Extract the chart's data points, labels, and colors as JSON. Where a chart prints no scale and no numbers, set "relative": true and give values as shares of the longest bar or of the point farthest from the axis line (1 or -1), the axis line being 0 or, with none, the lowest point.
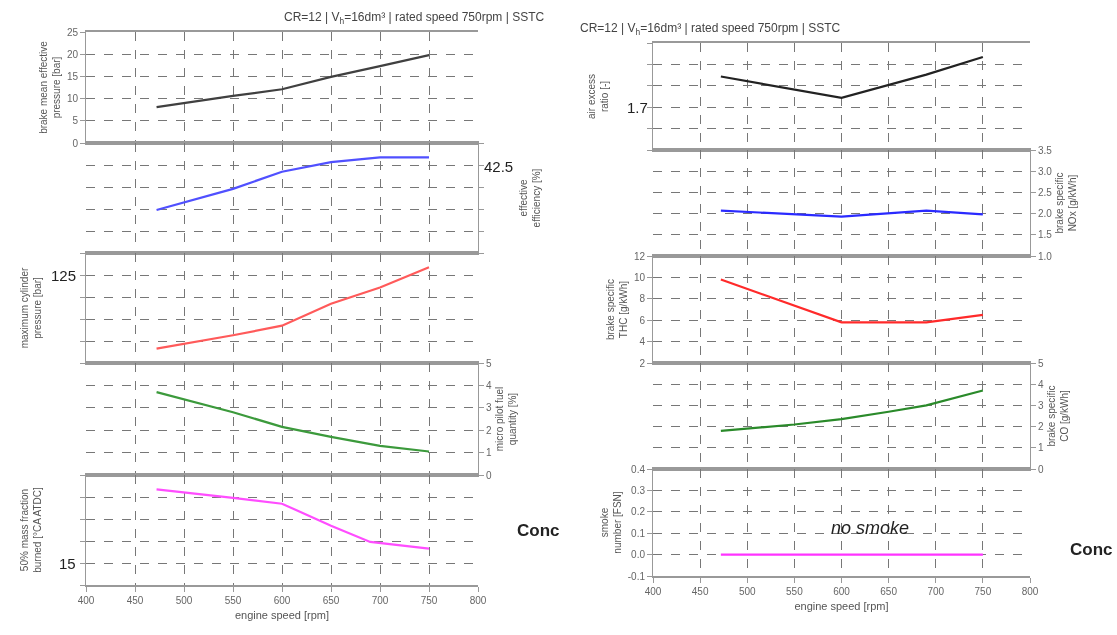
{
  "chart_data": [
    {
      "type": "line",
      "title": "CR=12 | V$_{h}$=16dm³ | rated speed 750rpm | SSTC",
      "ylabel": "brake mean effective pressure [bar]",
      "x": [
        472,
        550,
        600,
        650,
        700,
        750
      ],
      "xlim": [
        400,
        800
      ],
      "xticks": [
        400,
        450,
        500,
        550,
        600,
        650,
        700,
        750,
        800
      ],
      "ylim": [
        0,
        25
      ],
      "yticks": [
        0,
        5,
        10,
        15,
        20,
        25
      ],
      "grid": true,
      "tick_labels": "y",
      "series": [
        {
          "color": "#404040",
          "values": [
            8.1,
            10.6,
            12.1,
            14.9,
            17.3,
            19.8
          ]
        }
      ]
    },
    {
      "type": "line",
      "relative": true,
      "y2label": "effective efficiency [%]",
      "x": [
        472,
        550,
        600,
        650,
        700,
        750
      ],
      "xlim": [
        400,
        800
      ],
      "xticks": [
        400,
        450,
        500,
        550,
        600,
        650,
        700,
        750,
        800
      ],
      "grid": true,
      "tick_labels": false,
      "annotations": [
        "42.5"
      ],
      "series": [
        {
          "color": "#5050ff",
          "axis": "y2",
          "values": [
            0.45,
            0.67,
            0.85,
            0.95,
            1,
            1
          ]
        }
      ]
    },
    {
      "type": "line",
      "relative": true,
      "ylabel": "maximum cylinder pressure [bar]",
      "x": [
        472,
        550,
        600,
        650,
        700,
        750
      ],
      "xlim": [
        400,
        800
      ],
      "xticks": [
        400,
        450,
        500,
        550,
        600,
        650,
        700,
        750,
        800
      ],
      "grid": true,
      "tick_labels": false,
      "annotations": [
        "125"
      ],
      "series": [
        {
          "color": "#ff5a5a",
          "values": [
            0.15,
            0.29,
            0.39,
            0.62,
            0.79,
            1
          ]
        }
      ]
    },
    {
      "type": "line",
      "y2label": "micro pilot fuel quantity [%]",
      "x": [
        472,
        550,
        600,
        650,
        700,
        750
      ],
      "xlim": [
        400,
        800
      ],
      "xticks": [
        400,
        450,
        500,
        550,
        600,
        650,
        700,
        750,
        800
      ],
      "y2lim": [
        0,
        5
      ],
      "y2ticks": [
        0,
        1,
        2,
        3,
        4,
        5
      ],
      "grid": true,
      "tick_labels": "y",
      "series": [
        {
          "color": "#3c9a3c",
          "axis": "y2",
          "values": [
            3.7,
            2.8,
            2.15,
            1.7,
            1.3,
            1.05
          ]
        }
      ]
    },
    {
      "type": "line",
      "relative": true,
      "ylabel": "50% mass fraction burned [°CA ATDC]",
      "xlabel": "engine speed [rpm]",
      "x": [
        472,
        550,
        600,
        650,
        690,
        750
      ],
      "xlim": [
        400,
        800
      ],
      "xticks": [
        400,
        450,
        500,
        550,
        600,
        650,
        700,
        750,
        800
      ],
      "grid": true,
      "tick_labels": "x",
      "annotations": [
        "15",
        "Conc"
      ],
      "series": [
        {
          "color": "#ff4dff",
          "values": [
            1,
            0.91,
            0.85,
            0.62,
            0.45,
            0.38
          ]
        }
      ]
    },
    {
      "type": "line",
      "relative": true,
      "title": "CR=12 | V$_{h}$=16dm³ | rated speed 750rpm | SSTC",
      "ylabel": "air excess ratio [-]",
      "x": [
        472,
        600,
        690,
        750
      ],
      "xlim": [
        400,
        800
      ],
      "xticks": [
        400,
        450,
        500,
        550,
        600,
        650,
        700,
        750,
        800
      ],
      "grid": true,
      "tick_labels": false,
      "annotations": [
        "1.7"
      ],
      "series": [
        {
          "color": "#222222",
          "values": [
            0.79,
            0.56,
            0.81,
            1
          ]
        }
      ]
    },
    {
      "type": "line",
      "y2label": "brake specific NOx [g/kWh]",
      "x": [
        472,
        600,
        690,
        750
      ],
      "xlim": [
        400,
        800
      ],
      "xticks": [
        400,
        450,
        500,
        550,
        600,
        650,
        700,
        750,
        800
      ],
      "y2lim": [
        1.0,
        3.5
      ],
      "y2ticks": [
        {
          "value": 1,
          "label": "1.0"
        },
        1.5,
        {
          "value": 2,
          "label": "2.0"
        },
        2.5,
        {
          "value": 3,
          "label": "3.0"
        },
        3.5
      ],
      "grid": true,
      "tick_labels": "y",
      "series": [
        {
          "color": "#2a2aff",
          "axis": "y2",
          "values": [
            2.07,
            1.93,
            2.07,
            1.98
          ]
        }
      ]
    },
    {
      "type": "line",
      "ylabel": "brake specific THC [g/kWh]",
      "x": [
        472,
        600,
        690,
        750
      ],
      "xlim": [
        400,
        800
      ],
      "xticks": [
        400,
        450,
        500,
        550,
        600,
        650,
        700,
        750,
        800
      ],
      "ylim": [
        2,
        12
      ],
      "yticks": [
        2,
        4,
        6,
        8,
        10,
        12
      ],
      "grid": true,
      "tick_labels": "y",
      "series": [
        {
          "color": "#ff2a2a",
          "values": [
            9.8,
            5.8,
            5.8,
            6.5
          ]
        }
      ]
    },
    {
      "type": "line",
      "y2label": "brake specific CO [g/kWh]",
      "x": [
        472,
        550,
        600,
        650,
        690,
        750
      ],
      "xlim": [
        400,
        800
      ],
      "xticks": [
        400,
        450,
        500,
        550,
        600,
        650,
        700,
        750,
        800
      ],
      "y2lim": [
        0,
        5
      ],
      "y2ticks": [
        0,
        1,
        2,
        3,
        4,
        5
      ],
      "grid": true,
      "tick_labels": "y",
      "series": [
        {
          "color": "#2a8a2a",
          "axis": "y2",
          "values": [
            1.8,
            2.1,
            2.35,
            2.7,
            3.0,
            3.7
          ]
        }
      ]
    },
    {
      "type": "line",
      "ylabel": "smoke number [FSN]",
      "xlabel": "engine speed [rpm]",
      "x": [
        472,
        600,
        690,
        750
      ],
      "xlim": [
        400,
        800
      ],
      "xticks": [
        400,
        450,
        500,
        550,
        600,
        650,
        700,
        750,
        800
      ],
      "ylim": [
        -0.1,
        0.4
      ],
      "yticks": [
        {
          "value": -0.1,
          "label": "-0.1"
        },
        {
          "value": 0,
          "label": "0.0"
        },
        0.1,
        0.2,
        0.3,
        0.4
      ],
      "grid": true,
      "annotations": [
        "no smoke",
        "Conc"
      ],
      "series": [
        {
          "color": "#ff33ff",
          "values": [
            0.0,
            0.0,
            0.0,
            0.0
          ]
        }
      ]
    }
  ]
}
